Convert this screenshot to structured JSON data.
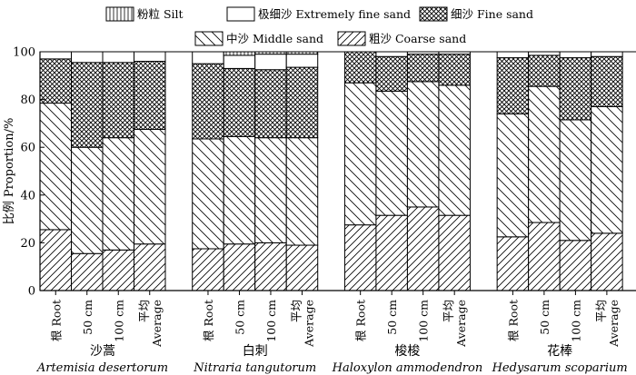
{
  "chart_data": {
    "type": "bar",
    "stacked": true,
    "ylabel": "比例 Proportion/%",
    "ylim": [
      0,
      100
    ],
    "yticks": [
      0,
      20,
      40,
      60,
      80,
      100
    ],
    "grid": false,
    "legend_placement": "top",
    "legend": [
      {
        "key": "silt",
        "label": "粉粒 Silt",
        "pattern": "vertical"
      },
      {
        "key": "extremely_fine",
        "label": "极细沙 Extremely fine sand",
        "pattern": "none"
      },
      {
        "key": "fine",
        "label": "细沙 Fine sand",
        "pattern": "crosshatch"
      },
      {
        "key": "middle",
        "label": "中沙 Middle sand",
        "pattern": "diagonal-wide"
      },
      {
        "key": "coarse",
        "label": "粗沙 Coarse sand",
        "pattern": "diagonal-narrow"
      }
    ],
    "stack_order": [
      "coarse",
      "middle",
      "fine",
      "extremely_fine",
      "silt"
    ],
    "groups": [
      {
        "name_cn": "沙蒿",
        "name_latin": "Artemisia desertorum",
        "bars": [
          {
            "cn": "根",
            "en": "Root",
            "values": {
              "coarse": 25.5,
              "middle": 53,
              "fine": 18.5,
              "extremely_fine": 3,
              "silt": 0
            }
          },
          {
            "cn": "",
            "en": "50 cm",
            "values": {
              "coarse": 15.5,
              "middle": 44.5,
              "fine": 35.5,
              "extremely_fine": 4.5,
              "silt": 0
            }
          },
          {
            "cn": "",
            "en": "100 cm",
            "values": {
              "coarse": 17,
              "middle": 47,
              "fine": 31.5,
              "extremely_fine": 4.5,
              "silt": 0
            }
          },
          {
            "cn": "平均",
            "en": "Average",
            "values": {
              "coarse": 19.5,
              "middle": 48,
              "fine": 28.5,
              "extremely_fine": 4,
              "silt": 0
            }
          }
        ]
      },
      {
        "name_cn": "白刺",
        "name_latin": "Nitraria tangutorum",
        "bars": [
          {
            "cn": "根",
            "en": "Root",
            "values": {
              "coarse": 17.5,
              "middle": 46,
              "fine": 31.5,
              "extremely_fine": 5,
              "silt": 0
            }
          },
          {
            "cn": "",
            "en": "50 cm",
            "values": {
              "coarse": 19.5,
              "middle": 45,
              "fine": 28.5,
              "extremely_fine": 5.5,
              "silt": 1.5
            }
          },
          {
            "cn": "",
            "en": "100 cm",
            "values": {
              "coarse": 20,
              "middle": 44,
              "fine": 28.5,
              "extremely_fine": 6.5,
              "silt": 1
            }
          },
          {
            "cn": "平均",
            "en": "Average",
            "values": {
              "coarse": 19,
              "middle": 45,
              "fine": 29.5,
              "extremely_fine": 5.5,
              "silt": 1
            }
          }
        ]
      },
      {
        "name_cn": "梭梭",
        "name_latin": "Haloxylon ammodendron",
        "bars": [
          {
            "cn": "根",
            "en": "Root",
            "values": {
              "coarse": 27.5,
              "middle": 59.5,
              "fine": 13,
              "extremely_fine": 0,
              "silt": 0
            }
          },
          {
            "cn": "",
            "en": "50 cm",
            "values": {
              "coarse": 31.5,
              "middle": 52,
              "fine": 14.5,
              "extremely_fine": 2,
              "silt": 0
            }
          },
          {
            "cn": "",
            "en": "100 cm",
            "values": {
              "coarse": 35,
              "middle": 52.5,
              "fine": 11.5,
              "extremely_fine": 1,
              "silt": 0
            }
          },
          {
            "cn": "平均",
            "en": "Average",
            "values": {
              "coarse": 31.5,
              "middle": 54.5,
              "fine": 13,
              "extremely_fine": 1,
              "silt": 0
            }
          }
        ]
      },
      {
        "name_cn": "花棒",
        "name_latin": "Hedysarum scoparium",
        "bars": [
          {
            "cn": "根",
            "en": "Root",
            "values": {
              "coarse": 22.5,
              "middle": 51.5,
              "fine": 23.5,
              "extremely_fine": 2.5,
              "silt": 0
            }
          },
          {
            "cn": "",
            "en": "50 cm",
            "values": {
              "coarse": 28.5,
              "middle": 57,
              "fine": 13,
              "extremely_fine": 1.5,
              "silt": 0
            }
          },
          {
            "cn": "",
            "en": "100 cm",
            "values": {
              "coarse": 21,
              "middle": 50.5,
              "fine": 26,
              "extremely_fine": 2.5,
              "silt": 0
            }
          },
          {
            "cn": "平均",
            "en": "Average",
            "values": {
              "coarse": 24,
              "middle": 53,
              "fine": 21,
              "extremely_fine": 2,
              "silt": 0
            }
          }
        ]
      }
    ]
  }
}
